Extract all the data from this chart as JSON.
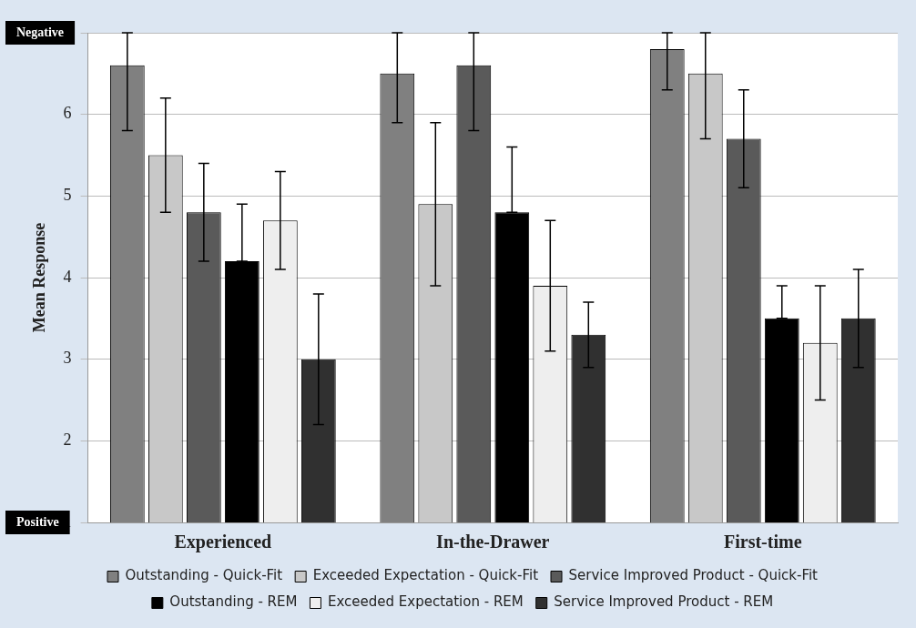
{
  "chart_data": {
    "type": "bar",
    "ylabel": "Mean Response",
    "categories": [
      "Experienced",
      "In-the-Drawer",
      "First-time"
    ],
    "ylim": [
      1,
      7
    ],
    "yticks": [
      1,
      2,
      3,
      4,
      5,
      6,
      7
    ],
    "grid": "y",
    "legend": "bottom",
    "annotations": [
      "Negative",
      "Positive"
    ],
    "series": [
      {
        "name": "Outstanding - Quick-Fit",
        "color": "#808080",
        "values": [
          6.6,
          6.5,
          6.8
        ],
        "errors": [
          [
            5.8,
            7
          ],
          [
            5.9,
            7
          ],
          [
            6.3,
            7
          ]
        ]
      },
      {
        "name": "Exceeded Expectation - Quick-Fit",
        "color": "#c8c8c8",
        "values": [
          5.5,
          4.9,
          6.5
        ],
        "errors": [
          [
            4.8,
            6.2
          ],
          [
            3.9,
            5.9
          ],
          [
            5.7,
            7
          ]
        ]
      },
      {
        "name": "Service Improved Product - Quick-Fit",
        "color": "#5a5a5a",
        "values": [
          4.8,
          6.6,
          5.7
        ],
        "errors": [
          [
            4.2,
            5.4
          ],
          [
            5.8,
            7
          ],
          [
            5.1,
            6.3
          ]
        ]
      },
      {
        "name": "Outstanding - REM",
        "color": "#000000",
        "values": [
          4.2,
          4.8,
          3.5
        ],
        "errors": [
          [
            4.2,
            4.9
          ],
          [
            4.8,
            5.6
          ],
          [
            3.5,
            3.9
          ]
        ]
      },
      {
        "name": "Exceeded Expectation - REM",
        "color": "#eeeeee",
        "values": [
          4.7,
          3.9,
          3.2
        ],
        "errors": [
          [
            4.1,
            5.3
          ],
          [
            3.1,
            4.7
          ],
          [
            2.5,
            3.9
          ]
        ]
      },
      {
        "name": "Service Improved Product - REM",
        "color": "#303030",
        "values": [
          3.0,
          3.3,
          3.5
        ],
        "errors": [
          [
            2.2,
            3.8
          ],
          [
            2.9,
            3.7
          ],
          [
            2.9,
            4.1
          ]
        ]
      }
    ]
  }
}
